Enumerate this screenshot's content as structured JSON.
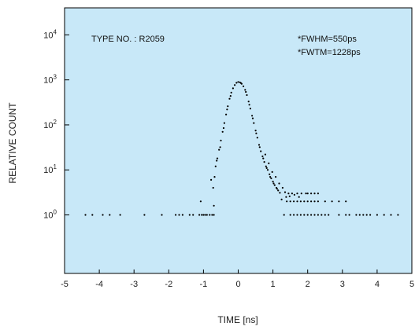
{
  "chart_data": {
    "type": "scatter",
    "xlabel": "TIME [ns]",
    "ylabel": "RELATIVE COUNT",
    "xlim": [
      -5,
      5
    ],
    "y_scale": "log",
    "ylim_exponent": [
      -1.3,
      4.6
    ],
    "x_ticks": [
      -5,
      -4,
      -3,
      -2,
      -1,
      0,
      1,
      2,
      3,
      4,
      5
    ],
    "x_tick_labels": [
      "-5",
      "-4",
      "-3",
      "-2",
      "-1",
      "0",
      "1",
      "2",
      "3",
      "4",
      "5"
    ],
    "y_ticks": [
      {
        "base": "10",
        "exp": "0",
        "value": 1
      },
      {
        "base": "10",
        "exp": "1",
        "value": 10
      },
      {
        "base": "10",
        "exp": "2",
        "value": 100
      },
      {
        "base": "10",
        "exp": "3",
        "value": 1000
      },
      {
        "base": "10",
        "exp": "4",
        "value": 10000
      }
    ],
    "annotations": {
      "type_no": "TYPE NO. : R2059",
      "fwhm": "*FWHM=550ps",
      "fwtm": "*FWTM=1228ps"
    },
    "plot_background": "#c8e8f8",
    "point_color": "#000000",
    "grid": false,
    "points": [
      [
        -4.4,
        1
      ],
      [
        -4.2,
        1
      ],
      [
        -3.9,
        1
      ],
      [
        -3.7,
        1
      ],
      [
        -3.4,
        1
      ],
      [
        -2.7,
        1
      ],
      [
        -2.2,
        1
      ],
      [
        -1.8,
        1
      ],
      [
        -1.7,
        1
      ],
      [
        -1.6,
        1
      ],
      [
        -1.4,
        1
      ],
      [
        -1.3,
        1
      ],
      [
        -1.12,
        1
      ],
      [
        -1.05,
        1
      ],
      [
        -1.0,
        1
      ],
      [
        -0.95,
        1
      ],
      [
        -0.9,
        1
      ],
      [
        -0.82,
        1
      ],
      [
        -0.75,
        1
      ],
      [
        -0.7,
        1
      ],
      [
        -1.08,
        2
      ],
      [
        -0.7,
        1.6
      ],
      [
        -0.72,
        4
      ],
      [
        -0.78,
        6
      ],
      [
        -0.68,
        7
      ],
      [
        -0.65,
        12
      ],
      [
        -0.6,
        18
      ],
      [
        -0.55,
        28
      ],
      [
        -0.5,
        45
      ],
      [
        -0.45,
        70
      ],
      [
        -0.4,
        110
      ],
      [
        -0.35,
        170
      ],
      [
        -0.3,
        260
      ],
      [
        -0.25,
        380
      ],
      [
        -0.2,
        520
      ],
      [
        -0.15,
        650
      ],
      [
        -0.1,
        770
      ],
      [
        -0.05,
        860
      ],
      [
        -0.62,
        16
      ],
      [
        -0.52,
        32
      ],
      [
        -0.42,
        85
      ],
      [
        -0.32,
        220
      ],
      [
        -0.22,
        440
      ],
      [
        0.0,
        900
      ],
      [
        0.05,
        880
      ],
      [
        0.1,
        820
      ],
      [
        0.15,
        720
      ],
      [
        0.2,
        600
      ],
      [
        0.25,
        460
      ],
      [
        0.3,
        330
      ],
      [
        0.35,
        230
      ],
      [
        0.4,
        160
      ],
      [
        0.45,
        110
      ],
      [
        0.5,
        75
      ],
      [
        0.55,
        52
      ],
      [
        0.6,
        36
      ],
      [
        0.65,
        26
      ],
      [
        0.7,
        20
      ],
      [
        0.75,
        15
      ],
      [
        0.8,
        12
      ],
      [
        0.85,
        10
      ],
      [
        0.9,
        8
      ],
      [
        0.95,
        6.5
      ],
      [
        1.0,
        5.5
      ],
      [
        1.05,
        4.6
      ],
      [
        1.1,
        4.0
      ],
      [
        1.15,
        3.5
      ],
      [
        1.2,
        3.1
      ],
      [
        0.08,
        850
      ],
      [
        0.22,
        540
      ],
      [
        0.32,
        280
      ],
      [
        0.42,
        140
      ],
      [
        0.52,
        65
      ],
      [
        0.62,
        32
      ],
      [
        0.72,
        18
      ],
      [
        0.82,
        11
      ],
      [
        0.92,
        7
      ],
      [
        1.02,
        5
      ],
      [
        1.12,
        3.8
      ],
      [
        0.78,
        22
      ],
      [
        0.88,
        14
      ],
      [
        0.98,
        9
      ],
      [
        1.08,
        7
      ],
      [
        1.18,
        5
      ],
      [
        1.28,
        4
      ],
      [
        1.35,
        3.2
      ],
      [
        1.45,
        3
      ],
      [
        1.55,
        3
      ],
      [
        1.7,
        3
      ],
      [
        1.82,
        3
      ],
      [
        1.95,
        3
      ],
      [
        2.0,
        3
      ],
      [
        2.1,
        3
      ],
      [
        1.25,
        2.2
      ],
      [
        1.38,
        2.5
      ],
      [
        1.48,
        2.6
      ],
      [
        1.62,
        2.8
      ],
      [
        1.75,
        2.5
      ],
      [
        2.2,
        3
      ],
      [
        2.3,
        3
      ],
      [
        1.4,
        2
      ],
      [
        1.5,
        2
      ],
      [
        1.6,
        2
      ],
      [
        1.7,
        2
      ],
      [
        1.8,
        2
      ],
      [
        1.9,
        2
      ],
      [
        2.0,
        2
      ],
      [
        2.1,
        2
      ],
      [
        2.2,
        2
      ],
      [
        2.3,
        2
      ],
      [
        2.5,
        2
      ],
      [
        2.7,
        2
      ],
      [
        2.9,
        2
      ],
      [
        3.1,
        2
      ],
      [
        1.32,
        1
      ],
      [
        1.5,
        1
      ],
      [
        1.6,
        1
      ],
      [
        1.7,
        1
      ],
      [
        1.8,
        1
      ],
      [
        1.9,
        1
      ],
      [
        2.0,
        1
      ],
      [
        2.1,
        1
      ],
      [
        2.2,
        1
      ],
      [
        2.3,
        1
      ],
      [
        2.4,
        1
      ],
      [
        2.5,
        1
      ],
      [
        2.6,
        1
      ],
      [
        2.9,
        1
      ],
      [
        3.1,
        1
      ],
      [
        3.2,
        1
      ],
      [
        3.4,
        1
      ],
      [
        3.5,
        1
      ],
      [
        3.6,
        1
      ],
      [
        3.7,
        1
      ],
      [
        3.8,
        1
      ],
      [
        4.0,
        1
      ],
      [
        4.2,
        1
      ],
      [
        4.4,
        1
      ],
      [
        4.6,
        1
      ]
    ]
  }
}
